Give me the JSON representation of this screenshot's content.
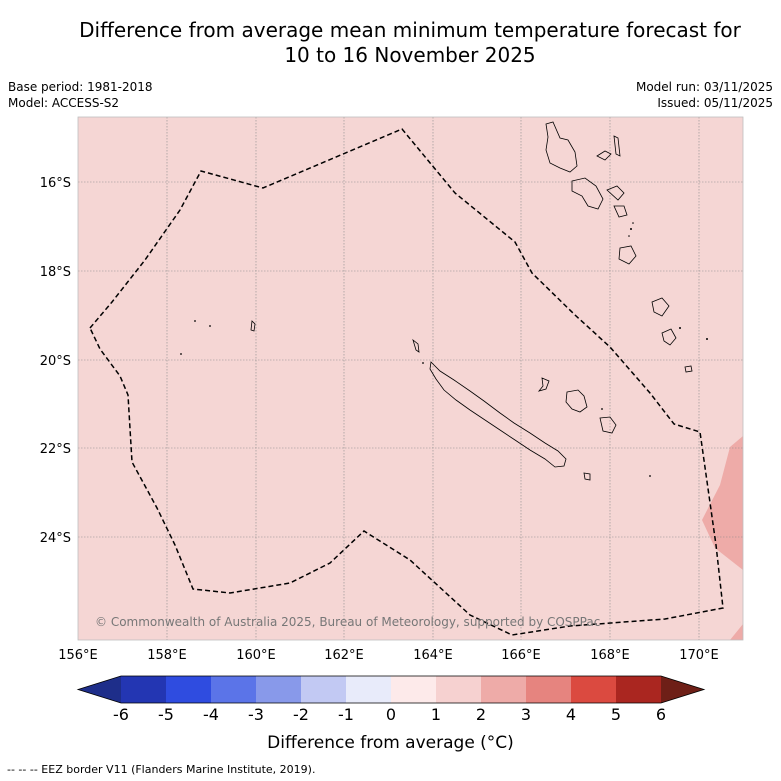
{
  "title_line1": "Difference from average mean minimum temperature forecast for",
  "title_line2": "10 to 16 November 2025",
  "base_period": "Base period: 1981-2018",
  "model": "Model: ACCESS-S2",
  "model_run": "Model run: 03/11/2025",
  "issued": "Issued: 05/11/2025",
  "copyright": "© Commonwealth of Australia 2025, Bureau of Meteorology, supported by COSPPac",
  "lat_labels": [
    "16°S",
    "18°S",
    "20°S",
    "22°S",
    "24°S"
  ],
  "lon_labels": [
    "156°E",
    "158°E",
    "160°E",
    "162°E",
    "164°E",
    "166°E",
    "168°E",
    "170°E"
  ],
  "colorbar": {
    "labels": [
      "-6",
      "-5",
      "-4",
      "-3",
      "-2",
      "-1",
      "0",
      "1",
      "2",
      "3",
      "4",
      "5",
      "6"
    ],
    "colors": [
      "#1e2e8a",
      "#2336b3",
      "#2f4ce0",
      "#5b74e8",
      "#8899ea",
      "#c2c9f3",
      "#e8ebfa",
      "#fdeaea",
      "#f6d1d0",
      "#eeaba8",
      "#e6847f",
      "#db4a40",
      "#aa2620",
      "#6e1f17"
    ],
    "title": "Difference from average (°C)"
  },
  "map_colors": {
    "background": "#f5d6d4",
    "warm_patch": "#eeaba8"
  },
  "footnote": "--  --  -- EEZ border V11 (Flanders Marine Institute, 2019)."
}
